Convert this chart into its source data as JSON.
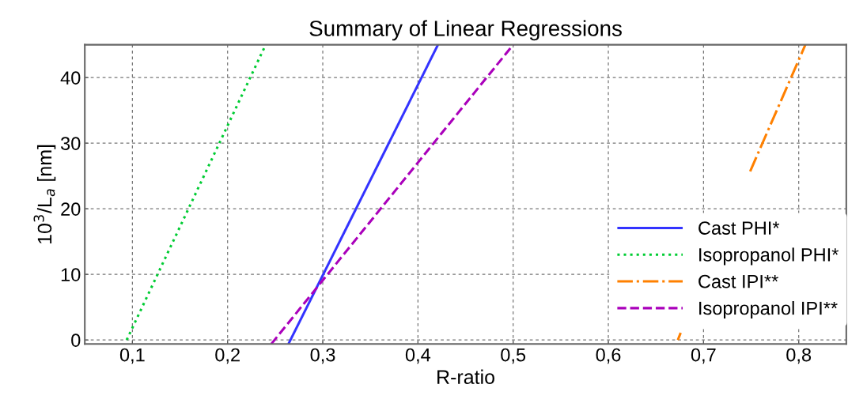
{
  "chart_data": {
    "type": "line",
    "title": "Summary of Linear Regressions",
    "xlabel": "R-ratio",
    "ylabel": "10$^{3}$/L$_{a}$ [nm]",
    "xlim": [
      0.05,
      0.85
    ],
    "ylim": [
      -0.6,
      45
    ],
    "xticks": [
      {
        "value": 0.1,
        "label": "0,1"
      },
      {
        "value": 0.2,
        "label": "0,2"
      },
      {
        "value": 0.3,
        "label": "0,3"
      },
      {
        "value": 0.4,
        "label": "0,4"
      },
      {
        "value": 0.5,
        "label": "0,5"
      },
      {
        "value": 0.6,
        "label": "0,6"
      },
      {
        "value": 0.7,
        "label": "0,7"
      },
      {
        "value": 0.8,
        "label": "0,8"
      }
    ],
    "yticks": [
      0,
      10,
      20,
      30,
      40
    ],
    "grid": true,
    "legend": "bottom right",
    "marker": "none",
    "series": [
      {
        "name": "Cast PHI*",
        "color": "#3333ff",
        "line_style": "solid",
        "x": [
          0.264,
          0.421
        ],
        "values": [
          -0.6,
          45
        ]
      },
      {
        "name": "Isopropanol PHI*",
        "color": "#00cc33",
        "line_style": "dotted",
        "x": [
          0.094,
          0.24
        ],
        "values": [
          0,
          45
        ]
      },
      {
        "name": "Cast IPI**",
        "color": "#ff8000",
        "line_style": "dashdot",
        "x": [
          0.673,
          0.676,
          0.71,
          0.749,
          0.807
        ],
        "values": [
          0,
          1.1,
          null,
          25.7,
          45
        ]
      },
      {
        "name": "Isopropanol IPI**",
        "color": "#aa00bb",
        "line_style": "dashed",
        "x": [
          0.246,
          0.5
        ],
        "values": [
          -0.6,
          45
        ]
      }
    ]
  }
}
